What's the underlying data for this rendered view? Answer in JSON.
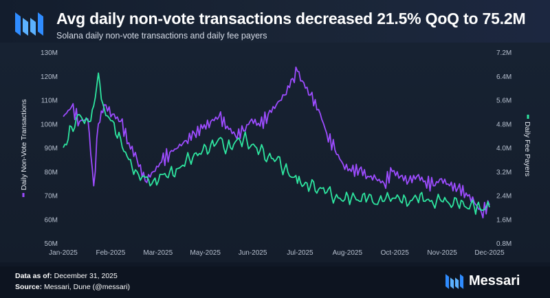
{
  "header": {
    "title": "Avg daily non-vote transactions decreased 21.5% QoQ to 75.2M",
    "subtitle": "Solana daily non-vote transactions and daily fee payers"
  },
  "footer": {
    "data_as_of_label": "Data as of:",
    "data_as_of_value": "December 31, 2025",
    "source_label": "Source:",
    "source_value": "Messari, Dune (@messari)",
    "brand_name": "Messari"
  },
  "colors": {
    "tx_series": "#9d4cff",
    "fee_series": "#2ee6a0",
    "background": "#101826",
    "axis_text": "#b7c0cf"
  },
  "icons": [
    "messari-logo-icon",
    "messari-brand-icon"
  ],
  "chart_data": {
    "type": "line",
    "x_tick_labels": [
      "Jan-2025",
      "Feb-2025",
      "Mar-2025",
      "May-2025",
      "Jun-2025",
      "Jul-2025",
      "Aug-2025",
      "Oct-2025",
      "Nov-2025",
      "Dec-2025"
    ],
    "xlim": [
      "2025-01-01",
      "2025-12-31"
    ],
    "y_left": {
      "label": "Daily Non-Vote Transactions",
      "ticks": [
        "50M",
        "60M",
        "70M",
        "80M",
        "90M",
        "100M",
        "110M",
        "120M",
        "130M"
      ],
      "range": [
        50,
        130
      ],
      "unit": "M"
    },
    "y_right": {
      "label": "Daily Fee Payers",
      "ticks": [
        "0.8M",
        "1.6M",
        "2.4M",
        "3.2M",
        "4.0M",
        "4.8M",
        "5.6M",
        "6.4M",
        "7.2M"
      ],
      "range": [
        0.8,
        7.2
      ],
      "unit": "M"
    },
    "grid": false,
    "legend": "axis-labels",
    "series": [
      {
        "name": "Daily Non-Vote Transactions",
        "axis": "left",
        "color": "#9d4cff",
        "points": [
          [
            "2025-01-01",
            103
          ],
          [
            "2025-01-08",
            107
          ],
          [
            "2025-01-15",
            101
          ],
          [
            "2025-01-22",
            102
          ],
          [
            "2025-01-27",
            74
          ],
          [
            "2025-01-31",
            100
          ],
          [
            "2025-02-05",
            108
          ],
          [
            "2025-02-12",
            104
          ],
          [
            "2025-02-19",
            101
          ],
          [
            "2025-02-26",
            92
          ],
          [
            "2025-03-05",
            85
          ],
          [
            "2025-03-12",
            76
          ],
          [
            "2025-03-19",
            80
          ],
          [
            "2025-03-26",
            84
          ],
          [
            "2025-04-02",
            88
          ],
          [
            "2025-04-09",
            90
          ],
          [
            "2025-04-16",
            93
          ],
          [
            "2025-04-23",
            96
          ],
          [
            "2025-04-30",
            98
          ],
          [
            "2025-05-07",
            101
          ],
          [
            "2025-05-14",
            103
          ],
          [
            "2025-05-21",
            99
          ],
          [
            "2025-05-28",
            95
          ],
          [
            "2025-06-04",
            97
          ],
          [
            "2025-06-11",
            102
          ],
          [
            "2025-06-18",
            99
          ],
          [
            "2025-06-25",
            104
          ],
          [
            "2025-07-02",
            108
          ],
          [
            "2025-07-09",
            112
          ],
          [
            "2025-07-16",
            119
          ],
          [
            "2025-07-20",
            122
          ],
          [
            "2025-07-24",
            118
          ],
          [
            "2025-07-31",
            112
          ],
          [
            "2025-08-07",
            106
          ],
          [
            "2025-08-14",
            96
          ],
          [
            "2025-08-21",
            89
          ],
          [
            "2025-08-28",
            83
          ],
          [
            "2025-09-04",
            80
          ],
          [
            "2025-09-11",
            81
          ],
          [
            "2025-09-18",
            78
          ],
          [
            "2025-09-25",
            77
          ],
          [
            "2025-10-02",
            75
          ],
          [
            "2025-10-09",
            80
          ],
          [
            "2025-10-16",
            78
          ],
          [
            "2025-10-23",
            76
          ],
          [
            "2025-10-30",
            78
          ],
          [
            "2025-11-06",
            76
          ],
          [
            "2025-11-13",
            74
          ],
          [
            "2025-11-20",
            77
          ],
          [
            "2025-11-27",
            74
          ],
          [
            "2025-12-04",
            73
          ],
          [
            "2025-12-11",
            71
          ],
          [
            "2025-12-18",
            67
          ],
          [
            "2025-12-24",
            63
          ],
          [
            "2025-12-31",
            66
          ]
        ]
      },
      {
        "name": "Daily Fee Payers",
        "axis": "right",
        "color": "#2ee6a0",
        "points": [
          [
            "2025-01-01",
            4.0
          ],
          [
            "2025-01-08",
            4.7
          ],
          [
            "2025-01-15",
            5.1
          ],
          [
            "2025-01-22",
            4.9
          ],
          [
            "2025-01-27",
            5.4
          ],
          [
            "2025-01-31",
            6.5
          ],
          [
            "2025-02-05",
            5.3
          ],
          [
            "2025-02-12",
            4.9
          ],
          [
            "2025-02-19",
            4.3
          ],
          [
            "2025-02-26",
            3.6
          ],
          [
            "2025-03-05",
            3.2
          ],
          [
            "2025-03-12",
            3.0
          ],
          [
            "2025-03-19",
            2.9
          ],
          [
            "2025-03-26",
            3.1
          ],
          [
            "2025-04-02",
            3.2
          ],
          [
            "2025-04-09",
            3.3
          ],
          [
            "2025-04-16",
            3.6
          ],
          [
            "2025-04-23",
            3.8
          ],
          [
            "2025-04-30",
            3.9
          ],
          [
            "2025-05-07",
            4.1
          ],
          [
            "2025-05-14",
            4.3
          ],
          [
            "2025-05-21",
            4.0
          ],
          [
            "2025-05-28",
            4.2
          ],
          [
            "2025-06-04",
            4.3
          ],
          [
            "2025-06-11",
            4.1
          ],
          [
            "2025-06-18",
            3.9
          ],
          [
            "2025-06-25",
            3.7
          ],
          [
            "2025-07-02",
            3.6
          ],
          [
            "2025-07-09",
            3.3
          ],
          [
            "2025-07-16",
            3.0
          ],
          [
            "2025-07-20",
            2.8
          ],
          [
            "2025-07-24",
            2.7
          ],
          [
            "2025-07-31",
            2.7
          ],
          [
            "2025-08-07",
            2.6
          ],
          [
            "2025-08-14",
            2.5
          ],
          [
            "2025-08-21",
            2.3
          ],
          [
            "2025-08-28",
            2.2
          ],
          [
            "2025-09-04",
            2.3
          ],
          [
            "2025-09-11",
            2.2
          ],
          [
            "2025-09-18",
            2.3
          ],
          [
            "2025-09-25",
            2.1
          ],
          [
            "2025-10-02",
            2.2
          ],
          [
            "2025-10-09",
            2.3
          ],
          [
            "2025-10-16",
            2.2
          ],
          [
            "2025-10-23",
            2.1
          ],
          [
            "2025-10-30",
            2.3
          ],
          [
            "2025-11-06",
            2.2
          ],
          [
            "2025-11-13",
            2.1
          ],
          [
            "2025-11-20",
            2.2
          ],
          [
            "2025-11-27",
            2.1
          ],
          [
            "2025-12-04",
            2.1
          ],
          [
            "2025-12-11",
            2.0
          ],
          [
            "2025-12-18",
            2.0
          ],
          [
            "2025-12-24",
            1.9
          ],
          [
            "2025-12-31",
            2.0
          ]
        ]
      }
    ]
  }
}
